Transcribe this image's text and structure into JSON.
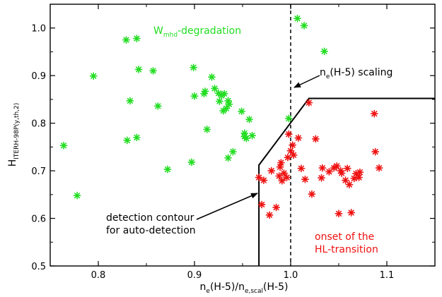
{
  "chart_data": {
    "type": "scatter",
    "xlim": [
      0.75,
      1.15
    ],
    "ylim": [
      0.5,
      1.05
    ],
    "x_ticks": [
      0.8,
      0.9,
      1.0,
      1.1
    ],
    "x_tick_labels": [
      "0.8",
      "0.9",
      "1.0",
      "1.1"
    ],
    "y_ticks": [
      0.5,
      0.6,
      0.7,
      0.8,
      0.9,
      1.0
    ],
    "y_tick_labels": [
      "0.5",
      "0.6",
      "0.7",
      "0.8",
      "0.9",
      "1.0"
    ],
    "xlabel": {
      "main": "n",
      "sub1": "e",
      "mid": "(H-5)/n",
      "sub2": "e,scal",
      "end": "(H-5)"
    },
    "ylabel": {
      "main": "H",
      "sub": "ITERH-98P(y,th,2)"
    },
    "grid": false,
    "legend": "none",
    "colors": {
      "green": "#22dd22",
      "red": "#ee1111",
      "line": "#000000"
    },
    "series": [
      {
        "color": "#22dd22",
        "marker": "asterisk",
        "points": [
          [
            0.764,
            0.753
          ],
          [
            0.778,
            0.648
          ],
          [
            0.795,
            0.899
          ],
          [
            0.829,
            0.975
          ],
          [
            0.83,
            0.764
          ],
          [
            0.833,
            0.847
          ],
          [
            0.84,
            0.978
          ],
          [
            0.84,
            0.77
          ],
          [
            0.842,
            0.913
          ],
          [
            0.857,
            0.91
          ],
          [
            0.862,
            0.836
          ],
          [
            0.872,
            0.703
          ],
          [
            0.897,
            0.718
          ],
          [
            0.899,
            0.917
          ],
          [
            0.9,
            0.857
          ],
          [
            0.91,
            0.862
          ],
          [
            0.911,
            0.867
          ],
          [
            0.913,
            0.787
          ],
          [
            0.918,
            0.897
          ],
          [
            0.921,
            0.873
          ],
          [
            0.925,
            0.863
          ],
          [
            0.926,
            0.846
          ],
          [
            0.928,
            0.858
          ],
          [
            0.93,
            0.826
          ],
          [
            0.931,
            0.862
          ],
          [
            0.933,
            0.831
          ],
          [
            0.935,
            0.847
          ],
          [
            0.935,
            0.727
          ],
          [
            0.936,
            0.84
          ],
          [
            0.94,
            0.74
          ],
          [
            0.949,
            0.825
          ],
          [
            0.952,
            0.779
          ],
          [
            0.952,
            0.772
          ],
          [
            0.954,
            0.768
          ],
          [
            0.957,
            0.808
          ],
          [
            0.96,
            0.774
          ],
          [
            0.998,
            0.81
          ],
          [
            1.007,
            1.02
          ],
          [
            1.014,
            1.005
          ],
          [
            1.035,
            0.951
          ]
        ]
      },
      {
        "color": "#ee1111",
        "marker": "asterisk",
        "points": [
          [
            0.967,
            0.686
          ],
          [
            0.97,
            0.629
          ],
          [
            0.972,
            0.68
          ],
          [
            0.978,
            0.607
          ],
          [
            0.98,
            0.7
          ],
          [
            0.985,
            0.623
          ],
          [
            0.988,
            0.689
          ],
          [
            0.989,
            0.708
          ],
          [
            0.99,
            0.717
          ],
          [
            0.991,
            0.679
          ],
          [
            0.993,
            0.695
          ],
          [
            0.996,
            0.686
          ],
          [
            0.997,
            0.728
          ],
          [
            0.998,
            0.777
          ],
          [
            1.0,
            0.742
          ],
          [
            1.002,
            0.754
          ],
          [
            1.003,
            0.733
          ],
          [
            1.008,
            0.769
          ],
          [
            1.011,
            0.705
          ],
          [
            1.015,
            0.682
          ],
          [
            1.019,
            0.843
          ],
          [
            1.022,
            0.651
          ],
          [
            1.026,
            0.767
          ],
          [
            1.032,
            0.685
          ],
          [
            1.033,
            0.706
          ],
          [
            1.04,
            0.698
          ],
          [
            1.045,
            0.706
          ],
          [
            1.048,
            0.71
          ],
          [
            1.05,
            0.61
          ],
          [
            1.052,
            0.7
          ],
          [
            1.053,
            0.695
          ],
          [
            1.057,
            0.68
          ],
          [
            1.059,
            0.705
          ],
          [
            1.061,
            0.671
          ],
          [
            1.063,
            0.612
          ],
          [
            1.066,
            0.684
          ],
          [
            1.068,
            0.694
          ],
          [
            1.071,
            0.686
          ],
          [
            1.072,
            0.697
          ],
          [
            1.087,
            0.82
          ],
          [
            1.088,
            0.74
          ],
          [
            1.092,
            0.706
          ]
        ]
      }
    ],
    "dashed_line_x": 1.0,
    "contour": [
      [
        0.967,
        0.5
      ],
      [
        0.967,
        0.712
      ],
      [
        1.019,
        0.852
      ],
      [
        1.15,
        0.852
      ]
    ],
    "annotations": {
      "wmhd": {
        "main": "W",
        "sub": "mhd",
        "rest": "-degradation"
      },
      "scaling": {
        "main": "n",
        "sub": "e",
        "rest": "(H-5) scaling"
      },
      "detection_line1": "detection contour",
      "detection_line2": "for auto-detection",
      "onset_line1": "onset of the",
      "onset_line2": "HL-transition"
    }
  }
}
